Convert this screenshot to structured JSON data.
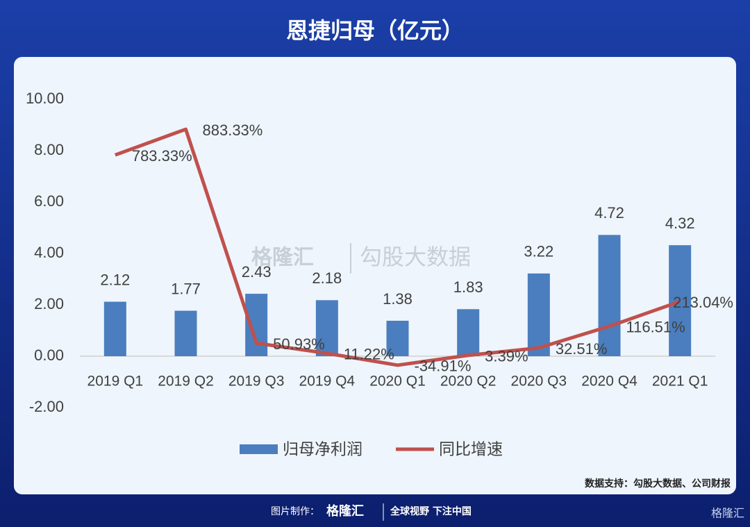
{
  "chart_data": {
    "type": "bar_line",
    "title": "恩捷归母（亿元）",
    "categories": [
      "2019 Q1",
      "2019 Q2",
      "2019 Q3",
      "2019 Q4",
      "2020 Q1",
      "2020 Q2",
      "2020 Q3",
      "2020 Q4",
      "2021 Q1"
    ],
    "series": [
      {
        "name": "归母净利润",
        "type": "bar",
        "color": "#4a7ebf",
        "values": [
          2.12,
          1.77,
          2.43,
          2.18,
          1.38,
          1.83,
          3.22,
          4.72,
          4.32
        ]
      },
      {
        "name": "同比增速",
        "type": "line",
        "axis": "y2",
        "color": "#c0504d",
        "values": [
          783.33,
          883.33,
          50.93,
          11.22,
          -34.91,
          3.39,
          32.51,
          116.51,
          213.04
        ],
        "value_labels": [
          "783.33%",
          "883.33%",
          "50.93%",
          "11.22%",
          "-34.91%",
          "3.39%",
          "32.51%",
          "116.51%",
          "213.04%"
        ]
      }
    ],
    "ylim": [
      -2,
      10
    ],
    "yticks": [
      {
        "value": -2,
        "label": "-2.00"
      },
      {
        "value": 0,
        "label": "0.00"
      },
      {
        "value": 2,
        "label": "2.00"
      },
      {
        "value": 4,
        "label": "4.00"
      },
      {
        "value": 6,
        "label": "6.00"
      },
      {
        "value": 8,
        "label": "8.00"
      },
      {
        "value": 10,
        "label": "10.00"
      }
    ],
    "y2lim": [
      -200,
      1000
    ],
    "legend": "bottom",
    "watermark": [
      "格隆汇",
      "勾股大数据"
    ],
    "source": "数据支持：勾股大数据、公司财报",
    "footer": {
      "made_by": "图片制作：",
      "brand": "格隆汇",
      "slogan": "全球视野 下注中国"
    }
  }
}
